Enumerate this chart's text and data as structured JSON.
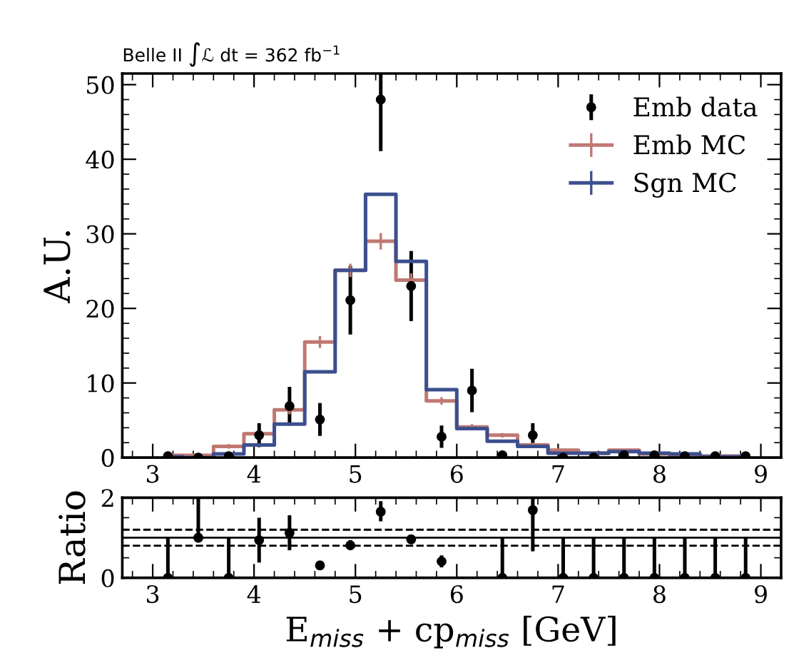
{
  "chart_data": [
    {
      "type": "step",
      "title": "Belle II ∫ℒ dt = 362 fb$^{−1}$",
      "ylabel": "A.U.",
      "x": [
        3.15,
        3.45,
        3.75,
        4.05,
        4.35,
        4.65,
        4.95,
        5.25,
        5.55,
        5.85,
        6.15,
        6.45,
        6.75,
        7.05,
        7.35,
        7.65,
        7.95,
        8.25,
        8.55,
        8.85
      ],
      "series": [
        {
          "name": "Emb data",
          "type": "scatter",
          "color": "#000000",
          "x": [
            3.15,
            3.45,
            3.75,
            4.05,
            4.35,
            4.65,
            4.95,
            5.25,
            5.55,
            5.85,
            6.15,
            6.45,
            6.75,
            7.05,
            7.35,
            7.65,
            7.95,
            8.25,
            8.55,
            8.85
          ],
          "values": [
            0.2,
            0,
            0.2,
            3.0,
            6.9,
            5.1,
            21.1,
            48.0,
            23.0,
            2.8,
            9.0,
            0.3,
            3.0,
            0,
            0,
            0.3,
            0.3,
            0.2,
            0.2,
            0.2
          ],
          "errors": [
            null,
            null,
            null,
            1.6,
            2.6,
            2.2,
            4.6,
            6.9,
            4.7,
            1.5,
            2.9,
            null,
            1.6,
            null,
            null,
            null,
            null,
            null,
            null,
            null
          ]
        },
        {
          "name": "Emb MC",
          "type": "step",
          "color": "#c07872",
          "values": [
            0.3,
            0.3,
            1.5,
            3.2,
            6.4,
            15.5,
            25.1,
            29.0,
            23.8,
            7.6,
            4.1,
            3.0,
            1.7,
            1.0,
            0.6,
            1.0,
            0.5,
            0.2,
            0.2,
            0.2
          ],
          "errors": [
            null,
            null,
            0.3,
            null,
            0.6,
            0.8,
            0.9,
            1.1,
            0.9,
            0.5,
            0.4,
            0.3,
            0.3,
            null,
            null,
            null,
            null,
            null,
            null,
            null
          ]
        },
        {
          "name": "Sgn MC",
          "type": "step",
          "color": "#3c4f8e",
          "values": [
            0.1,
            0,
            0.5,
            1.7,
            4.5,
            11.5,
            25.1,
            35.3,
            26.3,
            9.1,
            3.9,
            2.2,
            1.5,
            0.6,
            0.6,
            0.8,
            0.6,
            0.5,
            0.1,
            0.1
          ]
        }
      ],
      "xlim": [
        2.7,
        9.2
      ],
      "xticks": [
        3,
        4,
        5,
        6,
        7,
        8,
        9
      ],
      "ylim": [
        0,
        51.5
      ],
      "yticks": [
        0,
        10,
        20,
        30,
        40,
        50
      ],
      "legend": "top right",
      "grid": false
    },
    {
      "type": "scatter",
      "ylabel": "Ratio",
      "xlabel": "E$_{miss}$ + cp$_{miss}$ [GeV]",
      "color": "#000000",
      "x": [
        3.15,
        3.45,
        3.75,
        4.05,
        4.35,
        4.65,
        4.95,
        5.25,
        5.55,
        5.85,
        6.15,
        6.45,
        6.75,
        7.05,
        7.35,
        7.65,
        7.95,
        8.25,
        8.55,
        8.85
      ],
      "values": [
        0,
        1.0,
        0,
        0.94,
        1.12,
        0.31,
        0.81,
        1.65,
        0.96,
        0.41,
        null,
        0,
        1.69,
        0,
        0,
        0,
        0,
        0,
        0,
        0
      ],
      "errors": [
        [
          0,
          1
        ],
        [
          1.0,
          2.0
        ],
        [
          0,
          1
        ],
        [
          0.38,
          1.5
        ],
        [
          0.69,
          1.56
        ],
        [
          0.22,
          0.4
        ],
        [
          0.7,
          0.94
        ],
        [
          1.41,
          1.91
        ],
        [
          0.85,
          1.08
        ],
        [
          0.26,
          0.56
        ],
        null,
        [
          0,
          1
        ],
        [
          0.66,
          2.0
        ],
        [
          0,
          1
        ],
        [
          0,
          1
        ],
        [
          0,
          1
        ],
        [
          0,
          1
        ],
        [
          0,
          1
        ],
        [
          0,
          1
        ],
        [
          0,
          1
        ]
      ],
      "ref_lines": [
        {
          "axis": "y",
          "value": 1.0,
          "line_style": "solid",
          "color": "#000000"
        },
        {
          "axis": "y",
          "value": 0.8,
          "line_style": "dashed",
          "color": "#000000"
        },
        {
          "axis": "y",
          "value": 1.2,
          "line_style": "dashed",
          "color": "#000000"
        }
      ],
      "xlim": [
        2.7,
        9.2
      ],
      "xticks": [
        3,
        4,
        5,
        6,
        7,
        8,
        9
      ],
      "ylim": [
        0,
        2
      ],
      "yticks": [
        0,
        2
      ],
      "grid": false
    }
  ]
}
